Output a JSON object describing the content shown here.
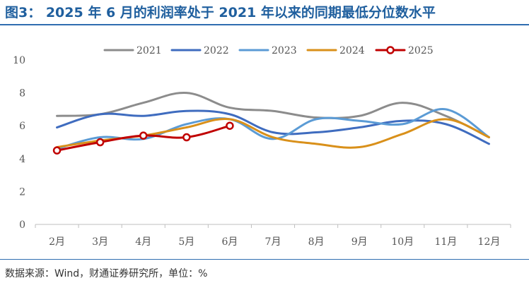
{
  "page": {
    "title": "图3：  2025 年 6 月的利润率处于 2021 年以来的同期最低分位数水平",
    "source": "数据来源：Wind，财通证券研究所，单位：%"
  },
  "chart_data": {
    "type": "line",
    "categories": [
      "2月",
      "3月",
      "4月",
      "5月",
      "6月",
      "7月",
      "8月",
      "9月",
      "10月",
      "11月",
      "12月"
    ],
    "ylim": [
      0,
      10
    ],
    "yticks": [
      0,
      2,
      4,
      6,
      8,
      10
    ],
    "grid": false,
    "legend_position": "top",
    "series": [
      {
        "name": "2021",
        "color": "#8c8c8c",
        "markers": false,
        "values": [
          6.6,
          6.7,
          7.4,
          8.0,
          7.1,
          6.9,
          6.5,
          6.6,
          7.4,
          6.6,
          5.3
        ]
      },
      {
        "name": "2022",
        "color": "#3f6cbf",
        "markers": false,
        "values": [
          5.9,
          6.7,
          6.6,
          6.9,
          6.7,
          5.6,
          5.6,
          5.9,
          6.3,
          6.1,
          4.9
        ]
      },
      {
        "name": "2023",
        "color": "#5b9bd5",
        "markers": false,
        "values": [
          4.6,
          5.3,
          5.2,
          6.1,
          6.4,
          5.2,
          6.4,
          6.3,
          6.1,
          7.0,
          5.3
        ]
      },
      {
        "name": "2024",
        "color": "#d9901a",
        "markers": false,
        "values": [
          4.7,
          5.1,
          5.4,
          5.9,
          6.4,
          5.3,
          4.9,
          4.7,
          5.5,
          6.4,
          5.3
        ]
      },
      {
        "name": "2025",
        "color": "#c00000",
        "markers": true,
        "values": [
          4.5,
          5.0,
          5.4,
          5.3,
          6.0,
          null,
          null,
          null,
          null,
          null,
          null
        ]
      }
    ]
  }
}
